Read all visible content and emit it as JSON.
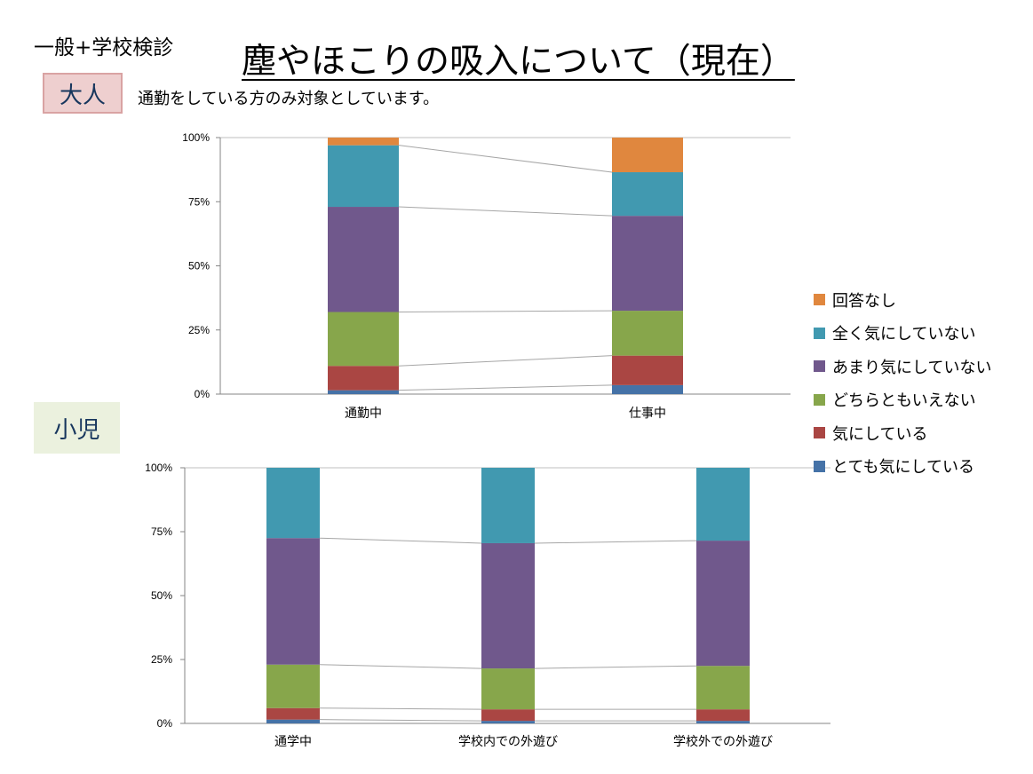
{
  "header": {
    "kicker": "一般+学校検診",
    "title": "塵やほこりの吸入について（現在）"
  },
  "sections": {
    "adult": {
      "badge": "大人",
      "note": "通勤をしている方のみ対象としています。"
    },
    "child": {
      "badge": "小児"
    }
  },
  "legend": [
    {
      "label": "回答なし",
      "color": "#e0873e"
    },
    {
      "label": "全く気にしていない",
      "color": "#4199b0"
    },
    {
      "label": "あまり気にしていない",
      "color": "#70588c"
    },
    {
      "label": "どちらともいえない",
      "color": "#87a64b"
    },
    {
      "label": "気にしている",
      "color": "#aa4643"
    },
    {
      "label": "とても気にしている",
      "color": "#4572a7"
    }
  ],
  "chart_data": [
    {
      "type": "bar",
      "stacked": "percent",
      "categories": [
        "通勤中",
        "仕事中"
      ],
      "yticks": [
        "0%",
        "25%",
        "50%",
        "75%",
        "100%"
      ],
      "ylim": [
        0,
        100
      ],
      "series": [
        {
          "name": "とても気にしている",
          "color": "#4572a7",
          "values": [
            1.5,
            3.5
          ]
        },
        {
          "name": "気にしている",
          "color": "#aa4643",
          "values": [
            9.5,
            11.5
          ]
        },
        {
          "name": "どちらともいえない",
          "color": "#87a64b",
          "values": [
            21,
            17.5
          ]
        },
        {
          "name": "あまり気にしていない",
          "color": "#70588c",
          "values": [
            41,
            37
          ]
        },
        {
          "name": "全く気にしていない",
          "color": "#4199b0",
          "values": [
            24,
            17
          ]
        },
        {
          "name": "回答なし",
          "color": "#e0873e",
          "values": [
            3,
            13.5
          ]
        }
      ]
    },
    {
      "type": "bar",
      "stacked": "percent",
      "categories": [
        "通学中",
        "学校内での外遊び",
        "学校外での外遊び"
      ],
      "yticks": [
        "0%",
        "25%",
        "50%",
        "75%",
        "100%"
      ],
      "ylim": [
        0,
        100
      ],
      "series": [
        {
          "name": "とても気にしている",
          "color": "#4572a7",
          "values": [
            1.5,
            1,
            1
          ]
        },
        {
          "name": "気にしている",
          "color": "#aa4643",
          "values": [
            4.5,
            4.5,
            4.5
          ]
        },
        {
          "name": "どちらともいえない",
          "color": "#87a64b",
          "values": [
            17,
            16,
            17
          ]
        },
        {
          "name": "あまり気にしていない",
          "color": "#70588c",
          "values": [
            49.5,
            49,
            49
          ]
        },
        {
          "name": "全く気にしていない",
          "color": "#4199b0",
          "values": [
            27.5,
            29.5,
            28.5
          ]
        },
        {
          "name": "回答なし",
          "color": "#e0873e",
          "values": [
            0,
            0,
            0
          ]
        }
      ]
    }
  ]
}
